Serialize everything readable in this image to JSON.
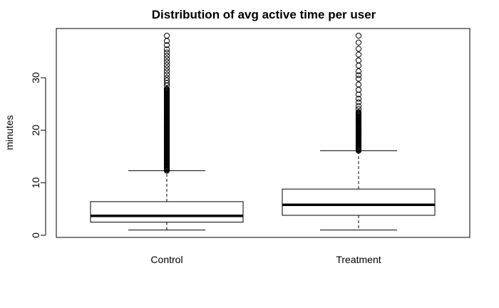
{
  "chart_data": {
    "type": "boxplot",
    "title": "Distribution of avg active time per user",
    "xlabel": "",
    "ylabel": "minutes",
    "ylim": [
      0,
      38
    ],
    "yticks": [
      0,
      10,
      20,
      30
    ],
    "grid": false,
    "categories": [
      "Control",
      "Treatment"
    ],
    "boxes": [
      {
        "category": "Control",
        "whisker_low": 1.0,
        "q1": 2.5,
        "median": 3.7,
        "q3": 6.4,
        "whisker_high": 12.3,
        "outliers_dense_range": [
          12.3,
          28
        ],
        "outliers_sparse": [
          28.5,
          29,
          29.5,
          30,
          30.6,
          31.2,
          31.8,
          32.4,
          33,
          33.6,
          34.2,
          34.8,
          35.4,
          36.2,
          37,
          38
        ]
      },
      {
        "category": "Treatment",
        "whisker_low": 1.0,
        "q1": 3.8,
        "median": 5.8,
        "q3": 8.8,
        "whisker_high": 16.1,
        "outliers_dense_range": [
          16.1,
          23.5
        ],
        "outliers_sparse": [
          24,
          24.6,
          25.3,
          26,
          26.8,
          27.7,
          28.7,
          29.8,
          30.5,
          31.2,
          32.3,
          33.3,
          34.4,
          35.5,
          36.7,
          38
        ]
      }
    ]
  }
}
